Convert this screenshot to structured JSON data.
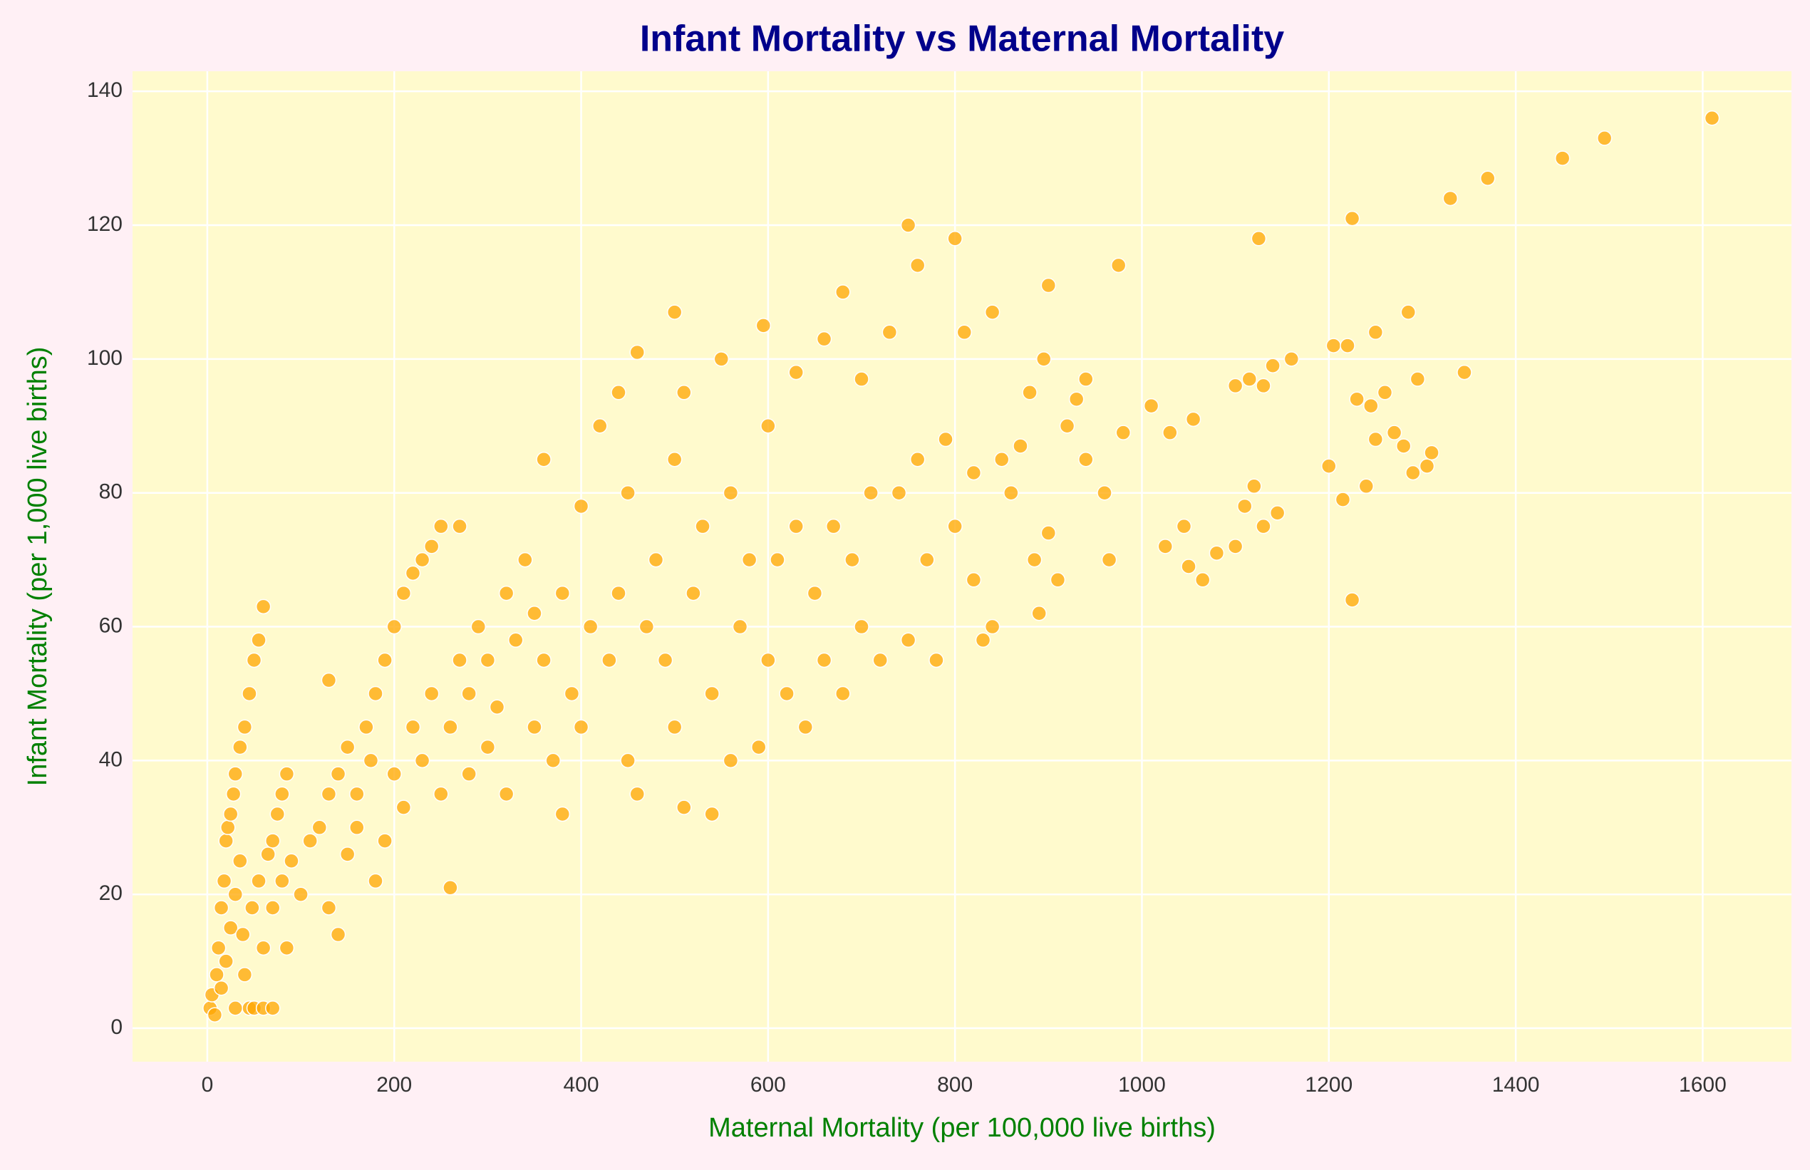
{
  "chart_data": {
    "type": "scatter",
    "title": "Infant Mortality vs Maternal Mortality",
    "x_label": "Maternal Mortality (per 100,000 live births)",
    "y_label": "Infant Mortality (per 1,000 live births)",
    "color": "#ffa500",
    "grid": true,
    "xlim": [
      -80,
      1695
    ],
    "ylim": [
      -5,
      143
    ],
    "xticks": [
      0,
      200,
      400,
      600,
      800,
      1000,
      1200,
      1400,
      1600
    ],
    "yticks": [
      0,
      20,
      40,
      60,
      80,
      100,
      120,
      140
    ],
    "x": [
      3,
      5,
      8,
      10,
      12,
      15,
      18,
      20,
      22,
      25,
      28,
      30,
      35,
      40,
      45,
      50,
      55,
      60,
      15,
      20,
      25,
      30,
      35,
      40,
      45,
      50,
      60,
      70,
      30,
      38,
      48,
      55,
      65,
      70,
      75,
      80,
      85,
      60,
      70,
      80,
      90,
      85,
      100,
      110,
      120,
      130,
      140,
      150,
      130,
      140,
      150,
      160,
      170,
      180,
      190,
      200,
      210,
      220,
      230,
      240,
      250,
      270,
      130,
      160,
      175,
      180,
      190,
      200,
      210,
      220,
      230,
      240,
      250,
      260,
      260,
      270,
      280,
      280,
      290,
      300,
      300,
      310,
      320,
      320,
      330,
      340,
      350,
      350,
      360,
      360,
      370,
      380,
      380,
      390,
      400,
      400,
      410,
      420,
      430,
      440,
      440,
      450,
      450,
      460,
      460,
      470,
      480,
      490,
      500,
      500,
      500,
      510,
      510,
      520,
      530,
      540,
      540,
      550,
      560,
      560,
      570,
      580,
      590,
      595,
      600,
      600,
      610,
      620,
      630,
      630,
      640,
      650,
      660,
      660,
      670,
      680,
      680,
      690,
      700,
      700,
      710,
      720,
      730,
      740,
      750,
      750,
      760,
      760,
      770,
      780,
      790,
      800,
      800,
      810,
      820,
      820,
      830,
      840,
      840,
      850,
      860,
      870,
      880,
      885,
      890,
      895,
      900,
      900,
      910,
      920,
      930,
      940,
      940,
      960,
      965,
      975,
      980,
      1010,
      1025,
      1030,
      1045,
      1050,
      1055,
      1065,
      1080,
      1100,
      1100,
      1110,
      1115,
      1120,
      1125,
      1130,
      1130,
      1140,
      1145,
      1160,
      1200,
      1205,
      1215,
      1220,
      1225,
      1225,
      1230,
      1240,
      1245,
      1250,
      1250,
      1260,
      1270,
      1280,
      1285,
      1290,
      1295,
      1305,
      1310,
      1330,
      1345,
      1370,
      1450,
      1495,
      1610
    ],
    "values": [
      3,
      5,
      2,
      8,
      12,
      18,
      22,
      28,
      30,
      32,
      35,
      38,
      42,
      45,
      50,
      55,
      58,
      63,
      6,
      10,
      15,
      20,
      25,
      8,
      3,
      3,
      3,
      3,
      3,
      14,
      18,
      22,
      26,
      28,
      32,
      35,
      38,
      12,
      18,
      22,
      25,
      12,
      20,
      28,
      30,
      35,
      38,
      42,
      18,
      14,
      26,
      30,
      45,
      50,
      55,
      60,
      65,
      68,
      70,
      72,
      75,
      75,
      52,
      35,
      40,
      22,
      28,
      38,
      33,
      45,
      40,
      50,
      35,
      21,
      45,
      55,
      50,
      38,
      60,
      55,
      42,
      48,
      65,
      35,
      58,
      70,
      45,
      62,
      85,
      55,
      40,
      32,
      65,
      50,
      78,
      45,
      60,
      90,
      55,
      95,
      65,
      40,
      80,
      101,
      35,
      60,
      70,
      55,
      107,
      85,
      45,
      95,
      33,
      65,
      75,
      32,
      50,
      100,
      80,
      40,
      60,
      70,
      42,
      105,
      90,
      55,
      70,
      50,
      98,
      75,
      45,
      65,
      103,
      55,
      75,
      110,
      50,
      70,
      97,
      60,
      80,
      55,
      104,
      80,
      120,
      58,
      114,
      85,
      70,
      55,
      88,
      75,
      118,
      104,
      83,
      67,
      58,
      107,
      60,
      85,
      80,
      87,
      95,
      70,
      62,
      100,
      111,
      74,
      67,
      90,
      94,
      97,
      85,
      80,
      70,
      114,
      89,
      93,
      72,
      89,
      75,
      69,
      91,
      67,
      71,
      96,
      72,
      78,
      97,
      81,
      118,
      96,
      75,
      99,
      77,
      100,
      84,
      102,
      79,
      102,
      121,
      64,
      94,
      81,
      93,
      104,
      88,
      95,
      89,
      87,
      107,
      83,
      97,
      84,
      86,
      124,
      98,
      127,
      130,
      133,
      136
    ]
  }
}
